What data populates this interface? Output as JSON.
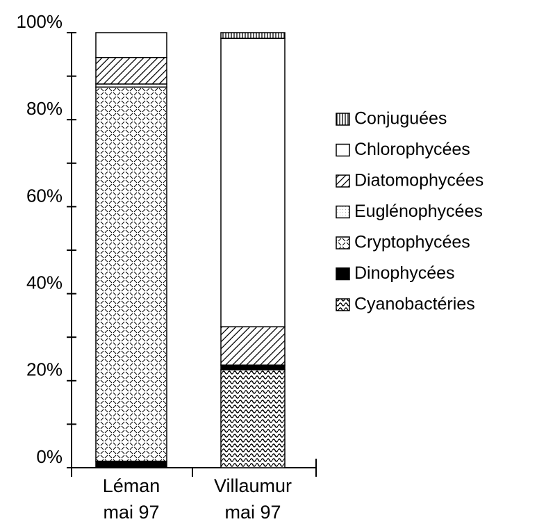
{
  "chart_data": {
    "type": "stacked_bar",
    "categories": [
      "Léman\nmai 97",
      "Villaumur\nmai 97"
    ],
    "series": [
      {
        "name": "Conjuguées",
        "color": "#000000",
        "pattern": "vertical-lines",
        "values": [
          0,
          1.3
        ]
      },
      {
        "name": "Chlorophycées",
        "color": "#000000",
        "pattern": "none",
        "values": [
          5.7,
          66.3
        ]
      },
      {
        "name": "Diatomophycées",
        "color": "#000000",
        "pattern": "diagonal-lines",
        "values": [
          6.1,
          8.8
        ]
      },
      {
        "name": "Euglénophycées",
        "color": "#000000",
        "pattern": "dots",
        "values": [
          0.7,
          0
        ]
      },
      {
        "name": "Cryptophycées",
        "color": "#000000",
        "pattern": "dashes",
        "values": [
          86,
          0
        ]
      },
      {
        "name": "Dinophycées",
        "color": "#000000",
        "pattern": "solid",
        "values": [
          1.5,
          1.1
        ]
      },
      {
        "name": "Cyanobactéries",
        "color": "#000000",
        "pattern": "waves",
        "values": [
          0,
          22.5
        ]
      }
    ],
    "ylim": [
      0,
      100
    ],
    "yticks": [
      {
        "value": 0,
        "label": "0%"
      },
      {
        "value": 20,
        "label": "20%"
      },
      {
        "value": 40,
        "label": "40%"
      },
      {
        "value": 60,
        "label": "60%"
      },
      {
        "value": 80,
        "label": "80%"
      },
      {
        "value": 100,
        "label": "100%"
      }
    ],
    "minor_yticks": [
      10,
      30,
      50,
      70,
      90
    ],
    "legend": "right"
  }
}
